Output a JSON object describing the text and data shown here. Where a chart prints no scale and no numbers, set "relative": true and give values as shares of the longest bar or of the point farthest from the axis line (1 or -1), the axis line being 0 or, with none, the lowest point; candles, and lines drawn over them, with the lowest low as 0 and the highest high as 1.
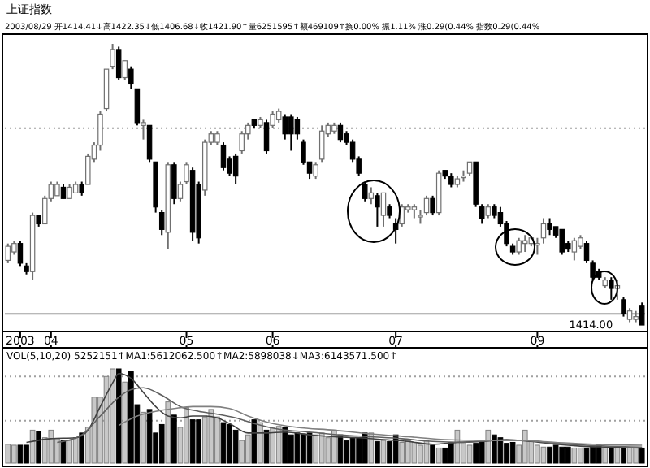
{
  "chart_data": [
    {
      "type": "candlestick",
      "relative": true,
      "title": "上证指数",
      "subtitle": "2003/08/29 开1414.41↓高1422.35↓低1406.68↓收1421.90↑量6251595↑额469109↑换0.00% 振1.11% 涨0.29(0.44% 指数0.29(0.44%",
      "categories": [
        null,
        null,
        "2003",
        null,
        null,
        null,
        null,
        "04",
        null,
        null,
        null,
        null,
        null,
        null,
        null,
        null,
        null,
        null,
        null,
        null,
        null,
        null,
        null,
        null,
        null,
        null,
        null,
        null,
        null,
        "05",
        null,
        null,
        null,
        null,
        null,
        null,
        null,
        null,
        null,
        null,
        null,
        null,
        null,
        "06",
        null,
        null,
        null,
        null,
        null,
        null,
        null,
        null,
        null,
        null,
        null,
        null,
        null,
        null,
        null,
        null,
        null,
        null,
        null,
        "07",
        null,
        null,
        null,
        null,
        null,
        null,
        null,
        null,
        null,
        null,
        null,
        null,
        null,
        null,
        null,
        null,
        null,
        null,
        null,
        null,
        null,
        null,
        "09",
        null,
        null,
        null,
        null,
        null,
        null,
        null,
        null,
        null,
        null,
        null,
        null,
        null,
        null,
        null,
        null,
        null
      ],
      "ohlc": [
        [
          0.23,
          0.29,
          0.22,
          0.28
        ],
        [
          0.26,
          0.3,
          0.25,
          0.29
        ],
        [
          0.29,
          0.3,
          0.21,
          0.22
        ],
        [
          0.21,
          0.22,
          0.18,
          0.19
        ],
        [
          0.19,
          0.4,
          0.16,
          0.39
        ],
        [
          0.39,
          0.39,
          0.35,
          0.36
        ],
        [
          0.36,
          0.46,
          0.36,
          0.45
        ],
        [
          0.45,
          0.51,
          0.44,
          0.5
        ],
        [
          0.46,
          0.51,
          0.46,
          0.5
        ],
        [
          0.49,
          0.5,
          0.45,
          0.45
        ],
        [
          0.45,
          0.5,
          0.45,
          0.49
        ],
        [
          0.47,
          0.51,
          0.47,
          0.5
        ],
        [
          0.5,
          0.51,
          0.46,
          0.47
        ],
        [
          0.5,
          0.61,
          0.5,
          0.6
        ],
        [
          0.59,
          0.65,
          0.58,
          0.64
        ],
        [
          0.64,
          0.76,
          0.62,
          0.75
        ],
        [
          0.77,
          0.91,
          0.76,
          0.91
        ],
        [
          0.92,
          1.0,
          0.91,
          0.98
        ],
        [
          0.98,
          0.99,
          0.87,
          0.88
        ],
        [
          0.88,
          0.94,
          0.87,
          0.94
        ],
        [
          0.91,
          0.92,
          0.84,
          0.86
        ],
        [
          0.84,
          0.84,
          0.71,
          0.72
        ],
        [
          0.71,
          0.73,
          0.66,
          0.72
        ],
        [
          0.71,
          0.71,
          0.58,
          0.59
        ],
        [
          0.58,
          0.58,
          0.4,
          0.42
        ],
        [
          0.4,
          0.41,
          0.32,
          0.34
        ],
        [
          0.33,
          0.58,
          0.27,
          0.57
        ],
        [
          0.57,
          0.58,
          0.43,
          0.45
        ],
        [
          0.45,
          0.51,
          0.44,
          0.5
        ],
        [
          0.51,
          0.58,
          0.5,
          0.57
        ],
        [
          0.55,
          0.56,
          0.3,
          0.33
        ],
        [
          0.5,
          0.51,
          0.29,
          0.31
        ],
        [
          0.48,
          0.66,
          0.46,
          0.65
        ],
        [
          0.65,
          0.69,
          0.64,
          0.68
        ],
        [
          0.65,
          0.69,
          0.64,
          0.68
        ],
        [
          0.64,
          0.65,
          0.55,
          0.56
        ],
        [
          0.59,
          0.6,
          0.53,
          0.54
        ],
        [
          0.6,
          0.61,
          0.5,
          0.53
        ],
        [
          0.62,
          0.69,
          0.61,
          0.68
        ],
        [
          0.68,
          0.72,
          0.66,
          0.71
        ],
        [
          0.73,
          0.73,
          0.7,
          0.71
        ],
        [
          0.71,
          0.74,
          0.7,
          0.73
        ],
        [
          0.72,
          0.73,
          0.61,
          0.62
        ],
        [
          0.71,
          0.76,
          0.7,
          0.75
        ],
        [
          0.73,
          0.77,
          0.72,
          0.76
        ],
        [
          0.74,
          0.75,
          0.66,
          0.68
        ],
        [
          0.74,
          0.75,
          0.62,
          0.68
        ],
        [
          0.73,
          0.74,
          0.66,
          0.68
        ],
        [
          0.65,
          0.66,
          0.57,
          0.58
        ],
        [
          0.58,
          0.58,
          0.52,
          0.54
        ],
        [
          0.53,
          0.58,
          0.52,
          0.57
        ],
        [
          0.59,
          0.71,
          0.58,
          0.69
        ],
        [
          0.68,
          0.72,
          0.67,
          0.71
        ],
        [
          0.69,
          0.72,
          0.68,
          0.71
        ],
        [
          0.71,
          0.72,
          0.65,
          0.66
        ],
        [
          0.68,
          0.69,
          0.64,
          0.65
        ],
        [
          0.65,
          0.66,
          0.58,
          0.59
        ],
        [
          0.59,
          0.6,
          0.53,
          0.54
        ],
        [
          0.5,
          0.51,
          0.44,
          0.45
        ],
        [
          0.45,
          0.49,
          0.43,
          0.47
        ],
        [
          0.46,
          0.47,
          0.35,
          0.42
        ],
        [
          0.39,
          0.47,
          0.35,
          0.47
        ],
        [
          0.42,
          0.43,
          0.38,
          0.39
        ],
        [
          0.36,
          0.38,
          0.29,
          0.34
        ],
        [
          0.36,
          0.43,
          0.35,
          0.42
        ],
        [
          0.41,
          0.43,
          0.4,
          0.42
        ],
        [
          0.41,
          0.43,
          0.38,
          0.42
        ],
        [
          0.39,
          0.41,
          0.36,
          0.39
        ],
        [
          0.4,
          0.46,
          0.39,
          0.45
        ],
        [
          0.45,
          0.46,
          0.39,
          0.4
        ],
        [
          0.4,
          0.55,
          0.39,
          0.54
        ],
        [
          0.55,
          0.55,
          0.52,
          0.53
        ],
        [
          0.53,
          0.54,
          0.49,
          0.5
        ],
        [
          0.5,
          0.53,
          0.49,
          0.52
        ],
        [
          0.53,
          0.55,
          0.51,
          0.53
        ],
        [
          0.54,
          0.58,
          0.53,
          0.58
        ],
        [
          0.58,
          0.58,
          0.42,
          0.43
        ],
        [
          0.42,
          0.43,
          0.36,
          0.38
        ],
        [
          0.39,
          0.43,
          0.38,
          0.42
        ],
        [
          0.42,
          0.43,
          0.38,
          0.39
        ],
        [
          0.4,
          0.42,
          0.35,
          0.36
        ],
        [
          0.36,
          0.37,
          0.28,
          0.29
        ],
        [
          0.28,
          0.29,
          0.25,
          0.26
        ],
        [
          0.26,
          0.31,
          0.25,
          0.3
        ],
        [
          0.29,
          0.32,
          0.26,
          0.3
        ],
        [
          0.29,
          0.31,
          0.28,
          0.31
        ],
        [
          0.29,
          0.31,
          0.25,
          0.29
        ],
        [
          0.31,
          0.38,
          0.29,
          0.36
        ],
        [
          0.36,
          0.38,
          0.32,
          0.34
        ],
        [
          0.35,
          0.35,
          0.31,
          0.32
        ],
        [
          0.34,
          0.34,
          0.25,
          0.26
        ],
        [
          0.29,
          0.3,
          0.26,
          0.27
        ],
        [
          0.26,
          0.31,
          0.23,
          0.3
        ],
        [
          0.28,
          0.32,
          0.27,
          0.31
        ],
        [
          0.29,
          0.3,
          0.22,
          0.23
        ],
        [
          0.22,
          0.23,
          0.16,
          0.17
        ],
        [
          0.19,
          0.2,
          0.16,
          0.17
        ],
        [
          0.14,
          0.17,
          0.13,
          0.16
        ],
        [
          0.16,
          0.17,
          0.09,
          0.13
        ],
        [
          0.13,
          0.16,
          0.09,
          0.14
        ],
        [
          0.09,
          0.1,
          0.03,
          0.04
        ],
        [
          0.02,
          0.06,
          0.01,
          0.05
        ],
        [
          0.02,
          0.05,
          0.01,
          0.03
        ],
        [
          0.07,
          0.08,
          0.0,
          0.0
        ]
      ],
      "annotations": [
        "1414.00"
      ],
      "ref_lines": [
        {
          "axis": "y",
          "value": 0.7,
          "color": "#a0a0a0",
          "line_style": "dotted"
        },
        {
          "axis": "y",
          "value": 0.04,
          "color": "#a0a0a0",
          "line_style": "solid"
        }
      ]
    },
    {
      "type": "bar",
      "relative": true,
      "tick_labels": false,
      "title": "VOL(5,10,20) 5252151↑MA1:5612062.500↑MA2:5898038↓MA3:6143571.500↑",
      "categories": [
        null,
        null,
        "2003",
        null,
        null,
        null,
        null,
        "04",
        null,
        null,
        null,
        null,
        null,
        null,
        null,
        null,
        null,
        null,
        null,
        null,
        null,
        null,
        null,
        null,
        null,
        null,
        null,
        null,
        null,
        "05",
        null,
        null,
        null,
        null,
        null,
        null,
        null,
        null,
        null,
        null,
        null,
        null,
        null,
        "06",
        null,
        null,
        null,
        null,
        null,
        null,
        null,
        null,
        null,
        null,
        null,
        null,
        null,
        null,
        null,
        null,
        null,
        null,
        null,
        "07",
        null,
        null,
        null,
        null,
        null,
        null,
        null,
        null,
        null,
        null,
        null,
        null,
        null,
        null,
        null,
        null,
        null,
        null,
        null,
        null,
        null,
        null,
        "09",
        null,
        null,
        null,
        null,
        null,
        null,
        null,
        null,
        null,
        null,
        null,
        null,
        null,
        null,
        null,
        null,
        null
      ],
      "series": [
        {
          "type": "bar",
          "values": [
            0.2,
            0.19,
            0.19,
            0.19,
            0.35,
            0.34,
            0.27,
            0.35,
            0.26,
            0.24,
            0.24,
            0.27,
            0.32,
            0.38,
            0.7,
            0.7,
            0.92,
            1.0,
            1.0,
            0.86,
            0.97,
            0.62,
            0.54,
            0.57,
            0.32,
            0.41,
            0.65,
            0.51,
            0.38,
            0.59,
            0.46,
            0.46,
            0.49,
            0.57,
            0.49,
            0.43,
            0.41,
            0.35,
            0.24,
            0.3,
            0.46,
            0.43,
            0.35,
            0.38,
            0.39,
            0.38,
            0.3,
            0.32,
            0.31,
            0.32,
            0.3,
            0.32,
            0.27,
            0.35,
            0.3,
            0.24,
            0.27,
            0.27,
            0.32,
            0.32,
            0.23,
            0.24,
            0.23,
            0.3,
            0.22,
            0.24,
            0.22,
            0.19,
            0.24,
            0.19,
            0.16,
            0.16,
            0.22,
            0.35,
            0.22,
            0.19,
            0.21,
            0.22,
            0.35,
            0.3,
            0.27,
            0.21,
            0.22,
            0.19,
            0.35,
            0.24,
            0.19,
            0.17,
            0.17,
            0.19,
            0.17,
            0.17,
            0.16,
            0.16,
            0.16,
            0.17,
            0.19,
            0.17,
            0.16,
            0.17,
            0.16,
            0.16,
            0.16,
            0.16
          ],
          "colors": [
            "#c8c8c8",
            "#c8c8c8",
            "#000000",
            "#000000",
            "#c8c8c8",
            "#000000",
            "#c8c8c8",
            "#c8c8c8",
            "#c8c8c8",
            "#000000",
            "#c8c8c8",
            "#c8c8c8",
            "#000000",
            "#c8c8c8",
            "#c8c8c8",
            "#c8c8c8",
            "#c8c8c8",
            "#c8c8c8",
            "#000000",
            "#c8c8c8",
            "#000000",
            "#000000",
            "#c8c8c8",
            "#000000",
            "#000000",
            "#000000",
            "#c8c8c8",
            "#000000",
            "#c8c8c8",
            "#c8c8c8",
            "#000000",
            "#000000",
            "#c8c8c8",
            "#c8c8c8",
            "#c8c8c8",
            "#000000",
            "#000000",
            "#000000",
            "#c8c8c8",
            "#c8c8c8",
            "#000000",
            "#c8c8c8",
            "#000000",
            "#c8c8c8",
            "#c8c8c8",
            "#000000",
            "#000000",
            "#000000",
            "#000000",
            "#000000",
            "#c8c8c8",
            "#c8c8c8",
            "#c8c8c8",
            "#c8c8c8",
            "#000000",
            "#000000",
            "#000000",
            "#000000",
            "#000000",
            "#c8c8c8",
            "#000000",
            "#c8c8c8",
            "#000000",
            "#000000",
            "#c8c8c8",
            "#c8c8c8",
            "#c8c8c8",
            "#c8c8c8",
            "#c8c8c8",
            "#000000",
            "#c8c8c8",
            "#000000",
            "#000000",
            "#c8c8c8",
            "#c8c8c8",
            "#c8c8c8",
            "#000000",
            "#000000",
            "#c8c8c8",
            "#000000",
            "#000000",
            "#000000",
            "#000000",
            "#c8c8c8",
            "#c8c8c8",
            "#c8c8c8",
            "#c8c8c8",
            "#c8c8c8",
            "#000000",
            "#000000",
            "#000000",
            "#000000",
            "#c8c8c8",
            "#c8c8c8",
            "#000000",
            "#000000",
            "#000000",
            "#c8c8c8",
            "#000000",
            "#c8c8c8",
            "#000000",
            "#c8c8c8",
            "#c8c8c8",
            "#000000"
          ]
        },
        {
          "type": "line",
          "color": "#404040",
          "values": [
            null,
            null,
            null,
            0.22,
            null,
            null,
            null,
            0.26,
            null,
            null,
            null,
            0.27,
            null,
            0.35,
            null,
            0.6,
            null,
            0.85,
            0.95,
            null,
            0.9,
            null,
            0.75,
            null,
            0.6,
            null,
            0.5,
            null,
            0.48,
            null,
            0.5,
            null,
            0.5,
            null,
            0.48,
            null,
            0.42,
            null,
            null,
            0.32,
            null,
            null,
            0.32,
            null,
            null,
            0.33,
            null,
            null,
            null,
            0.3,
            null,
            null,
            null,
            0.28,
            null,
            null,
            null,
            0.27,
            null,
            null,
            null,
            0.25,
            null,
            null,
            null,
            0.23,
            null,
            null,
            null,
            0.2,
            null,
            null,
            null,
            0.22,
            null,
            null,
            null,
            0.23,
            null,
            null,
            null,
            0.25,
            null,
            null,
            null,
            0.23,
            null,
            null,
            null,
            0.2,
            null,
            null,
            null,
            0.18,
            null,
            null,
            null,
            0.17,
            null,
            null,
            null,
            null,
            null,
            0.16
          ]
        },
        {
          "type": "line",
          "color": "#606060",
          "values": [
            null,
            null,
            null,
            null,
            null,
            null,
            null,
            null,
            0.22,
            null,
            null,
            null,
            0.3,
            null,
            null,
            0.5,
            null,
            null,
            0.7,
            null,
            0.78,
            null,
            0.8,
            null,
            null,
            0.72,
            null,
            null,
            0.6,
            null,
            null,
            0.55,
            null,
            null,
            0.52,
            null,
            null,
            0.48,
            null,
            null,
            0.42,
            null,
            null,
            null,
            0.36,
            null,
            null,
            null,
            null,
            0.33,
            null,
            null,
            null,
            null,
            0.3,
            null,
            null,
            null,
            null,
            0.28,
            null,
            null,
            null,
            null,
            0.26,
            null,
            null,
            null,
            null,
            0.23,
            null,
            null,
            null,
            null,
            0.22,
            null,
            null,
            null,
            null,
            0.24,
            null,
            null,
            null,
            null,
            0.24,
            null,
            null,
            null,
            null,
            0.21,
            null,
            null,
            null,
            null,
            0.19,
            null,
            null,
            null,
            null,
            null,
            null,
            null,
            null,
            0.17
          ]
        },
        {
          "type": "line",
          "color": "#808080",
          "values": [
            null,
            null,
            null,
            null,
            null,
            null,
            null,
            null,
            null,
            null,
            null,
            null,
            null,
            null,
            null,
            null,
            null,
            null,
            0.4,
            null,
            null,
            0.5,
            null,
            null,
            0.55,
            null,
            null,
            0.58,
            null,
            null,
            0.6,
            null,
            null,
            0.6,
            null,
            null,
            0.58,
            null,
            null,
            0.5,
            null,
            null,
            null,
            0.42,
            null,
            null,
            null,
            0.38,
            null,
            null,
            null,
            null,
            null,
            0.35,
            null,
            null,
            null,
            null,
            null,
            0.31,
            null,
            null,
            null,
            null,
            null,
            0.28,
            null,
            null,
            null,
            null,
            null,
            0.25,
            null,
            null,
            null,
            null,
            null,
            0.24,
            null,
            null,
            null,
            null,
            null,
            0.24,
            null,
            null,
            null,
            null,
            null,
            0.22,
            null,
            null,
            null,
            null,
            null,
            0.2,
            null,
            null,
            null,
            null,
            null,
            null,
            null,
            0.19
          ]
        }
      ],
      "ref_lines": [
        {
          "axis": "y",
          "value": 0.92,
          "color": "#a0a0a0",
          "line_style": "dotted"
        },
        {
          "axis": "y",
          "value": 0.45,
          "color": "#a0a0a0",
          "line_style": "dotted"
        }
      ]
    }
  ]
}
